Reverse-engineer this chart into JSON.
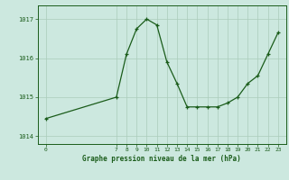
{
  "x": [
    0,
    7,
    8,
    9,
    10,
    11,
    12,
    13,
    14,
    15,
    16,
    17,
    18,
    19,
    20,
    21,
    22,
    23
  ],
  "y": [
    1014.45,
    1015.0,
    1016.1,
    1016.75,
    1017.0,
    1016.85,
    1015.9,
    1015.35,
    1014.75,
    1014.75,
    1014.75,
    1014.75,
    1014.85,
    1015.0,
    1015.35,
    1015.55,
    1016.1,
    1016.65
  ],
  "background_color": "#cce8df",
  "line_color": "#1a5c1a",
  "marker_color": "#1a5c1a",
  "grid_color": "#aaccbb",
  "title": "Graphe pression niveau de la mer (hPa)",
  "ylim_min": 1013.8,
  "ylim_max": 1017.35,
  "yticks": [
    1014,
    1015,
    1016,
    1017
  ],
  "ytick_labels": [
    "1014",
    "1015",
    "1016",
    "1017"
  ],
  "xtick_labels": [
    "0",
    "7",
    "8",
    "9",
    "10",
    "11",
    "12",
    "13",
    "14",
    "15",
    "16",
    "17",
    "18",
    "19",
    "20",
    "21",
    "22",
    "23"
  ],
  "xtick_positions": [
    0,
    7,
    8,
    9,
    10,
    11,
    12,
    13,
    14,
    15,
    16,
    17,
    18,
    19,
    20,
    21,
    22,
    23
  ]
}
